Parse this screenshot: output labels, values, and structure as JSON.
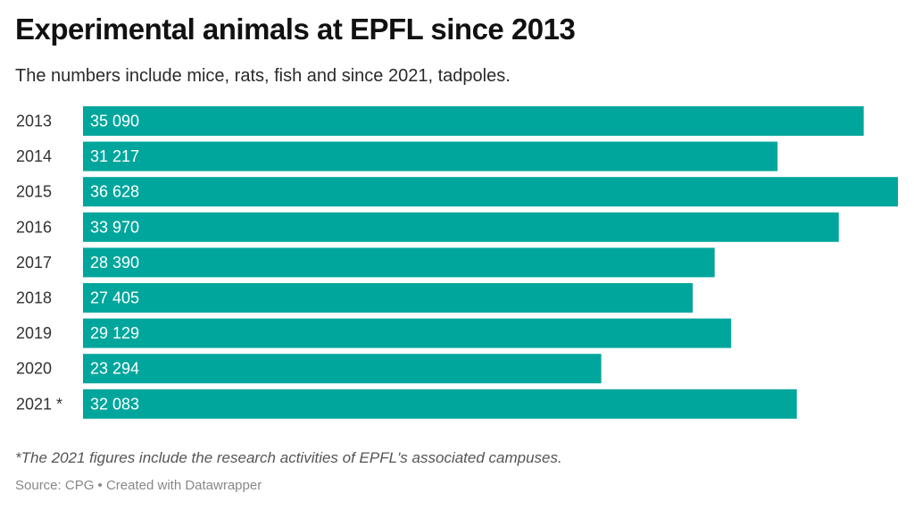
{
  "header": {
    "title": "Experimental animals at EPFL since 2013",
    "subtitle": "The numbers include mice, rats, fish and since 2021, tadpoles."
  },
  "footer": {
    "note": "*The 2021 figures include the research activities of EPFL's associated campuses.",
    "source": "Source: CPG • Created with Datawrapper"
  },
  "colors": {
    "bar": "#00a69c"
  },
  "chart_data": {
    "type": "bar",
    "orientation": "horizontal",
    "title": "Experimental animals at EPFL since 2013",
    "subtitle": "The numbers include mice, rats, fish and since 2021, tadpoles.",
    "xlabel": "",
    "ylabel": "",
    "grid": false,
    "legend": "none",
    "xlim": [
      0,
      36628
    ],
    "categories": [
      "2013",
      "2014",
      "2015",
      "2016",
      "2017",
      "2018",
      "2019",
      "2020",
      "2021 *"
    ],
    "values": [
      35090,
      31217,
      36628,
      33970,
      28390,
      27405,
      29129,
      23294,
      32083
    ],
    "value_labels": [
      "35 090",
      "31 217",
      "36 628",
      "33 970",
      "28 390",
      "27 405",
      "29 129",
      "23 294",
      "32 083"
    ]
  }
}
